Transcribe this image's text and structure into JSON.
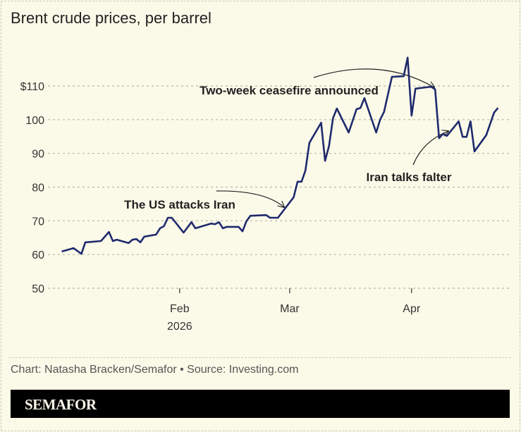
{
  "title": "Brent crude prices, per barrel",
  "credit": "Chart: Natasha Bracken/Semafor • Source: Investing.com",
  "brand": "SEMAFOR",
  "colors": {
    "line": "#1f2a6e",
    "background": "#fbf9e8",
    "grid": "#b9b6a6"
  },
  "chart_data": {
    "type": "line",
    "title": "Brent crude prices, per barrel",
    "xlabel": "",
    "ylabel": "",
    "ylim": [
      50,
      110
    ],
    "xlim": [
      "2026-01-01",
      "2026-04-24"
    ],
    "grid": true,
    "y_ticks": [
      {
        "value": 110,
        "label": "$110"
      },
      {
        "value": 100,
        "label": "100"
      },
      {
        "value": 90,
        "label": "90"
      },
      {
        "value": 80,
        "label": "80"
      },
      {
        "value": 70,
        "label": "70"
      },
      {
        "value": 60,
        "label": "60"
      },
      {
        "value": 50,
        "label": "50"
      }
    ],
    "x_ticks": [
      {
        "date": "2026-02-01",
        "label": "Feb",
        "sublabel": "2026"
      },
      {
        "date": "2026-03-01",
        "label": "Mar",
        "sublabel": ""
      },
      {
        "date": "2026-04-01",
        "label": "Apr",
        "sublabel": ""
      }
    ],
    "annotations": [
      {
        "text": "The US attacks Iran",
        "date": "2026-02-27"
      },
      {
        "text": "Two-week ceasefire announced",
        "date": "2026-04-07"
      },
      {
        "text": "Iran talks falter",
        "date": "2026-04-09"
      }
    ],
    "series": [
      {
        "points": [
          [
            "2026-01-02",
            60.9
          ],
          [
            "2026-01-05",
            61.9
          ],
          [
            "2026-01-07",
            60.2
          ],
          [
            "2026-01-08",
            63.6
          ],
          [
            "2026-01-12",
            64.0
          ],
          [
            "2026-01-14",
            66.7
          ],
          [
            "2026-01-15",
            64.0
          ],
          [
            "2026-01-16",
            64.4
          ],
          [
            "2026-01-19",
            63.4
          ],
          [
            "2026-01-20",
            64.4
          ],
          [
            "2026-01-21",
            64.6
          ],
          [
            "2026-01-22",
            63.6
          ],
          [
            "2026-01-23",
            65.3
          ],
          [
            "2026-01-26",
            65.9
          ],
          [
            "2026-01-27",
            67.8
          ],
          [
            "2026-01-28",
            68.4
          ],
          [
            "2026-01-29",
            70.9
          ],
          [
            "2026-01-30",
            70.9
          ],
          [
            "2026-02-02",
            66.5
          ],
          [
            "2026-02-04",
            69.6
          ],
          [
            "2026-02-05",
            67.8
          ],
          [
            "2026-02-09",
            69.2
          ],
          [
            "2026-02-10",
            69.0
          ],
          [
            "2026-02-11",
            69.6
          ],
          [
            "2026-02-12",
            67.8
          ],
          [
            "2026-02-13",
            68.2
          ],
          [
            "2026-02-16",
            68.2
          ],
          [
            "2026-02-17",
            66.9
          ],
          [
            "2026-02-18",
            69.9
          ],
          [
            "2026-02-19",
            71.5
          ],
          [
            "2026-02-23",
            71.7
          ],
          [
            "2026-02-24",
            70.9
          ],
          [
            "2026-02-26",
            70.9
          ],
          [
            "2026-03-02",
            77.0
          ],
          [
            "2026-03-03",
            81.6
          ],
          [
            "2026-03-04",
            81.6
          ],
          [
            "2026-03-05",
            84.9
          ],
          [
            "2026-03-06",
            93.1
          ],
          [
            "2026-03-09",
            99.1
          ],
          [
            "2026-03-10",
            87.8
          ],
          [
            "2026-03-11",
            92.2
          ],
          [
            "2026-03-12",
            100.4
          ],
          [
            "2026-03-13",
            103.3
          ],
          [
            "2026-03-16",
            96.2
          ],
          [
            "2026-03-18",
            103.1
          ],
          [
            "2026-03-19",
            103.5
          ],
          [
            "2026-03-20",
            106.4
          ],
          [
            "2026-03-23",
            96.2
          ],
          [
            "2026-03-24",
            100.0
          ],
          [
            "2026-03-25",
            102.3
          ],
          [
            "2026-03-27",
            112.7
          ],
          [
            "2026-03-30",
            112.9
          ],
          [
            "2026-03-31",
            118.4
          ],
          [
            "2026-04-01",
            101.2
          ],
          [
            "2026-04-02",
            109.2
          ],
          [
            "2026-04-06",
            109.8
          ],
          [
            "2026-04-07",
            109.0
          ],
          [
            "2026-04-08",
            94.5
          ],
          [
            "2026-04-09",
            95.8
          ],
          [
            "2026-04-10",
            95.2
          ],
          [
            "2026-04-13",
            99.5
          ],
          [
            "2026-04-14",
            94.9
          ],
          [
            "2026-04-15",
            94.9
          ],
          [
            "2026-04-16",
            99.5
          ],
          [
            "2026-04-17",
            90.6
          ],
          [
            "2026-04-20",
            95.4
          ],
          [
            "2026-04-22",
            102.1
          ],
          [
            "2026-04-23",
            103.5
          ]
        ]
      }
    ]
  }
}
